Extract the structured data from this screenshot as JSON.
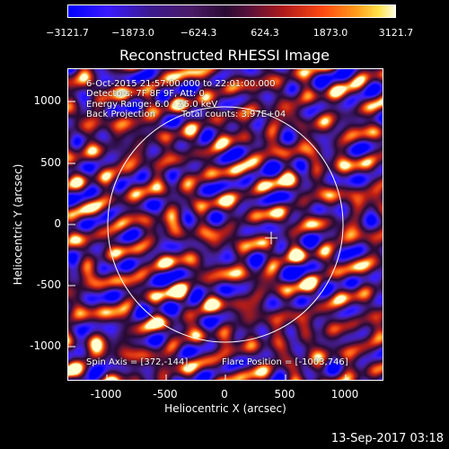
{
  "colorbar": {
    "ticks": [
      "−3121.7",
      "−1873.0",
      "−624.3",
      "624.3",
      "1873.0",
      "3121.7"
    ]
  },
  "title": "Reconstructed RHESSI Image",
  "info": {
    "time_range": "6-Oct-2015 21:57:00.000 to 22:01:00.000",
    "detectors": "Detectors: 7F 8F 9F, Att: 0",
    "energy": "Energy Range: 6.0 - 25.0 keV",
    "method": "Back Projection",
    "counts": "Total counts: 3.97E+04",
    "spin_axis": "Spin Axis = [372,-144]",
    "flare_position": "Flare Position = [-1003,746]"
  },
  "axes": {
    "xlabel": "Heliocentric X (arcsec)",
    "ylabel": "Heliocentric Y (arcsec)",
    "xticks": [
      "-1000",
      "-500",
      "0",
      "500",
      "1000"
    ],
    "yticks": [
      "1000",
      "500",
      "0",
      "-500",
      "-1000"
    ]
  },
  "footer": {
    "timestamp": "13-Sep-2017 03:18"
  }
}
